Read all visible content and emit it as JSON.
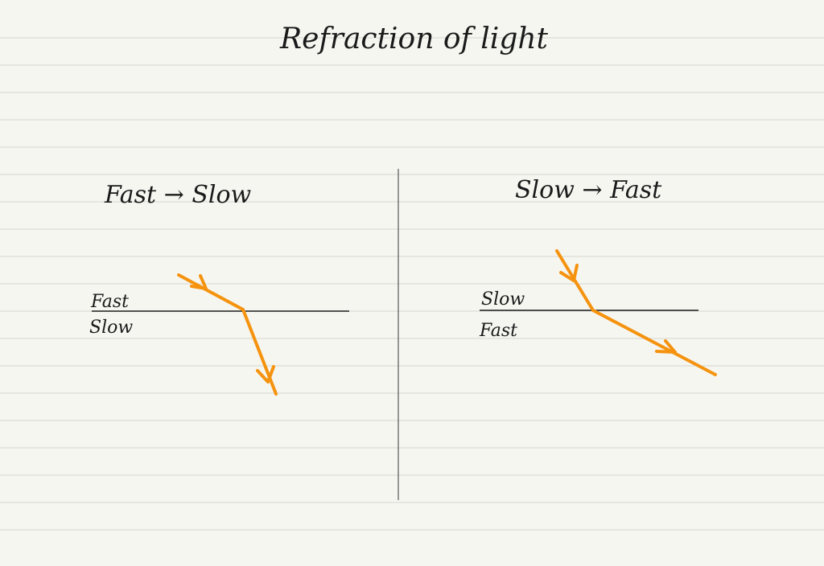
{
  "title": "Refraction of light",
  "left_panel": {
    "heading": "Fast → Slow",
    "label_top": "Fast",
    "label_bottom": "Slow"
  },
  "right_panel": {
    "heading": "Slow → Fast",
    "label_top": "Slow",
    "label_bottom": "Fast"
  },
  "colors": {
    "paper": "#f6f6f1",
    "ruled_line": "#d6d6d1",
    "ink": "#1a1a1a",
    "ray": "#f5930f"
  }
}
